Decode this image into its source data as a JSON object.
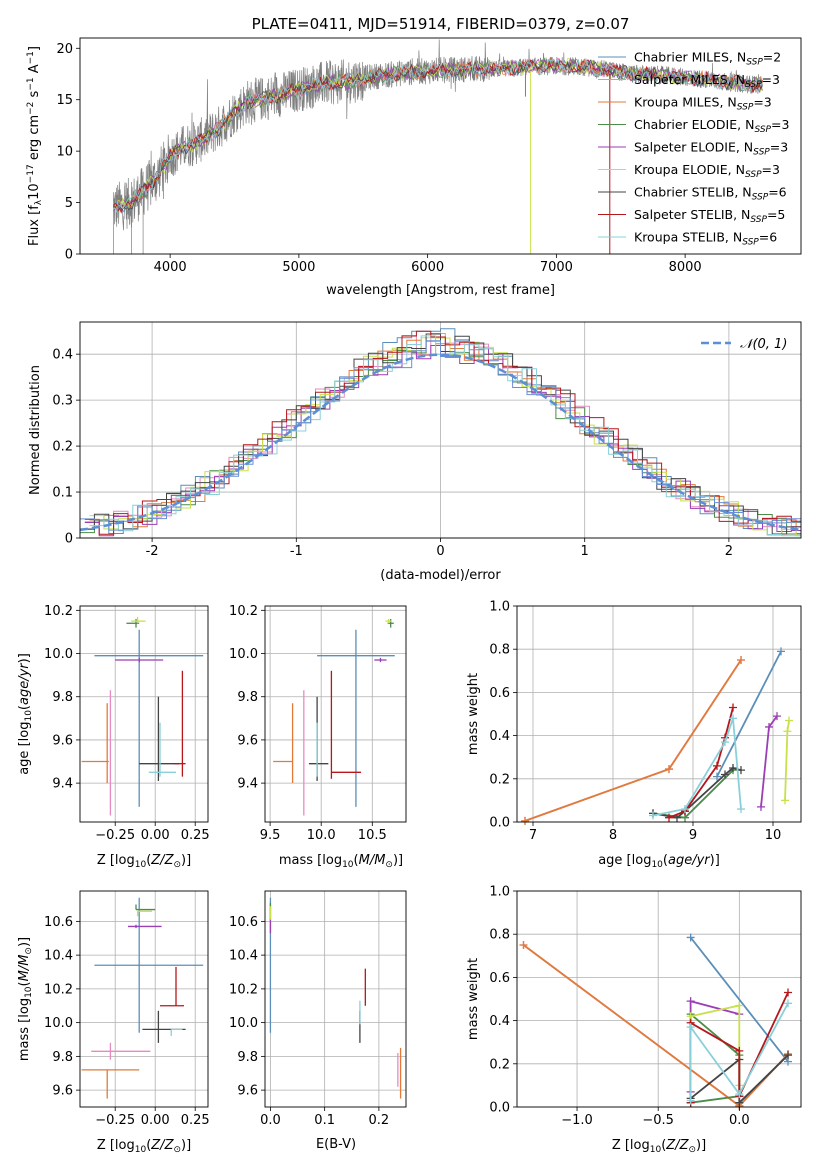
{
  "chart_data": [
    {
      "id": "spectrum",
      "type": "line",
      "title": "PLATE=0411, MJD=51914, FIBERID=0379, z=0.07",
      "xlabel": "wavelength [Angstrom, rest frame]",
      "ylabel": "Flux [fλ10⁻¹⁷ erg cm⁻² s⁻¹ A⁻¹]",
      "xlim": [
        3300,
        8900
      ],
      "ylim": [
        0,
        21
      ],
      "xticks": [
        4000,
        5000,
        6000,
        7000,
        8000
      ],
      "yticks": [
        0,
        5,
        10,
        15,
        20
      ],
      "legend_position": "top-right",
      "series": [
        {
          "name": "Chabrier MILES, N_SSP=2",
          "color": "#5b8fb9"
        },
        {
          "name": "Salpeter MILES, N_SSP=3",
          "color": "#e78ac3"
        },
        {
          "name": "Kroupa MILES, N_SSP=3",
          "color": "#e07b39"
        },
        {
          "name": "Chabrier ELODIE, N_SSP=3",
          "color": "#4a8c4a"
        },
        {
          "name": "Salpeter ELODIE, N_SSP=3",
          "color": "#9b3fb5"
        },
        {
          "name": "Kroupa ELODIE, N_SSP=3",
          "color": "#c8e04a"
        },
        {
          "name": "Chabrier STELIB, N_SSP=6",
          "color": "#444444"
        },
        {
          "name": "Salpeter STELIB, N_SSP=5",
          "color": "#b5171b"
        },
        {
          "name": "Kroupa STELIB, N_SSP=6",
          "color": "#8ad0d8"
        }
      ],
      "continuum": {
        "x": [
          3560,
          3700,
          3800,
          3900,
          4000,
          4100,
          4200,
          4300,
          4400,
          4500,
          4600,
          4800,
          5000,
          5200,
          5400,
          5600,
          5800,
          6000,
          6200,
          6400,
          6600,
          6800,
          7000,
          7200,
          7400,
          7600,
          7800,
          8000,
          8200,
          8400,
          8600
        ],
        "y": [
          4.5,
          5.0,
          6.2,
          7.5,
          9.5,
          10.4,
          10.8,
          11.5,
          12.5,
          13.8,
          14.8,
          15.3,
          16.0,
          16.6,
          16.8,
          17.3,
          17.6,
          17.8,
          17.9,
          18.0,
          18.0,
          18.2,
          18.3,
          18.2,
          17.9,
          17.5,
          17.4,
          17.2,
          16.9,
          16.6,
          16.4
        ]
      }
    },
    {
      "id": "residuals",
      "type": "step",
      "xlabel": "(data-model)/error",
      "ylabel": "Normed distribution",
      "xlim": [
        -2.5,
        2.5
      ],
      "ylim": [
        0,
        0.47
      ],
      "xticks": [
        -2,
        -1,
        0,
        1,
        2
      ],
      "yticks": [
        0.0,
        0.1,
        0.2,
        0.3,
        0.4
      ],
      "legend": [
        "𝒩(0, 1)"
      ],
      "grid": true
    },
    {
      "id": "age-vs-Z",
      "type": "errorbar",
      "xlabel": "Z [log₁₀(Z/Z⊙)]",
      "ylabel": "age  [log₁₀(age/yr)]",
      "xlim": [
        -0.47,
        0.33
      ],
      "ylim": [
        9.22,
        10.22
      ],
      "xticks": [
        -0.25,
        0.0,
        0.25
      ],
      "xticklabels": [
        "−0.25",
        "0.00",
        "0.25"
      ],
      "yticks": [
        9.4,
        9.6,
        9.8,
        10.0,
        10.2
      ],
      "yticklabels": [
        "9.4",
        "9.6",
        "9.8",
        "10.0",
        "10.2"
      ],
      "points": [
        {
          "x": -0.1,
          "xe": [
            0.28,
            0.4
          ],
          "y": 9.99,
          "ye": [
            0.7,
            0.12
          ],
          "color": "#5b8fb9"
        },
        {
          "x": -0.1,
          "xe": [
            0.15,
            0.15
          ],
          "y": 9.97,
          "ye": [
            0.01,
            0.01
          ],
          "color": "#9b3fb5"
        },
        {
          "x": -0.12,
          "xe": [
            0.06,
            0.02
          ],
          "y": 10.14,
          "ye": [
            0.02,
            0.02
          ],
          "color": "#4a8c4a"
        },
        {
          "x": -0.11,
          "xe": [
            0.04,
            0.05
          ],
          "y": 10.15,
          "ye": [
            0.01,
            0.02
          ],
          "color": "#c8e04a"
        },
        {
          "x": -0.3,
          "xe": [
            0.16,
            0.01
          ],
          "y": 9.5,
          "ye": [
            0.1,
            0.27
          ],
          "color": "#e07b39"
        },
        {
          "x": -0.28,
          "xe": [
            0.0,
            0.0
          ],
          "y": 9.5,
          "ye": [
            0.25,
            0.33
          ],
          "color": "#e78ac3"
        },
        {
          "x": 0.02,
          "xe": [
            0.12,
            0.13
          ],
          "y": 9.49,
          "ye": [
            0.08,
            0.31
          ],
          "color": "#444444"
        },
        {
          "x": 0.17,
          "xe": [
            0.05,
            0.02
          ],
          "y": 9.49,
          "ye": [
            0.06,
            0.43
          ],
          "color": "#b5171b"
        },
        {
          "x": 0.03,
          "xe": [
            0.07,
            0.1
          ],
          "y": 9.45,
          "ye": [
            0.02,
            0.23
          ],
          "color": "#8ad0d8"
        }
      ]
    },
    {
      "id": "age-vs-mass",
      "type": "errorbar",
      "xlabel": "mass [log₁₀(M/M⊙)]",
      "xlim": [
        9.45,
        10.83
      ],
      "ylim": [
        9.22,
        10.22
      ],
      "xticks": [
        9.5,
        10.0,
        10.5
      ],
      "xticklabels": [
        "9.5",
        "10.0",
        "10.5"
      ],
      "yticks": [
        9.4,
        9.6,
        9.8,
        10.0,
        10.2
      ],
      "yticklabels": [
        "9.4",
        "9.6",
        "9.8",
        "10.0",
        "10.2"
      ],
      "points": [
        {
          "x": 10.34,
          "xe": [
            0.38,
            0.38
          ],
          "y": 9.99,
          "ye": [
            0.7,
            0.12
          ],
          "color": "#5b8fb9"
        },
        {
          "x": 10.58,
          "xe": [
            0.06,
            0.06
          ],
          "y": 9.97,
          "ye": [
            0.01,
            0.01
          ],
          "color": "#9b3fb5"
        },
        {
          "x": 10.68,
          "xe": [
            0.03,
            0.03
          ],
          "y": 10.14,
          "ye": [
            0.02,
            0.02
          ],
          "color": "#4a8c4a"
        },
        {
          "x": 10.66,
          "xe": [
            0.03,
            0.03
          ],
          "y": 10.15,
          "ye": [
            0.01,
            0.01
          ],
          "color": "#c8e04a"
        },
        {
          "x": 9.72,
          "xe": [
            0.19,
            0.0
          ],
          "y": 9.5,
          "ye": [
            0.1,
            0.27
          ],
          "color": "#e07b39"
        },
        {
          "x": 9.83,
          "xe": [
            0.0,
            0.0
          ],
          "y": 9.5,
          "ye": [
            0.25,
            0.33
          ],
          "color": "#e78ac3"
        },
        {
          "x": 9.96,
          "xe": [
            0.08,
            0.11
          ],
          "y": 9.49,
          "ye": [
            0.08,
            0.31
          ],
          "color": "#444444"
        },
        {
          "x": 10.1,
          "xe": [
            0.0,
            0.29
          ],
          "y": 9.45,
          "ye": [
            0.03,
            0.47
          ],
          "color": "#b5171b"
        },
        {
          "x": 9.96,
          "xe": [
            0.0,
            0.0
          ],
          "y": 9.45,
          "ye": [
            0.02,
            0.23
          ],
          "color": "#8ad0d8"
        }
      ]
    },
    {
      "id": "massweight-vs-age",
      "type": "line",
      "xlabel": "age  [log₁₀(age/yr)]",
      "ylabel": "mass weight",
      "xlim": [
        6.8,
        10.35
      ],
      "ylim": [
        0,
        1.0
      ],
      "xticks": [
        7,
        8,
        9,
        10
      ],
      "xticklabels": [
        "7",
        "8",
        "9",
        "10"
      ],
      "yticks": [
        0.0,
        0.2,
        0.4,
        0.6,
        0.8,
        1.0
      ],
      "yticklabels": [
        "0.0",
        "0.2",
        "0.4",
        "0.6",
        "0.8",
        "1.0"
      ],
      "series": [
        {
          "color": "#5b8fb9",
          "x": [
            9.3,
            10.1
          ],
          "y": [
            0.21,
            0.79
          ]
        },
        {
          "color": "#e78ac3",
          "x": [
            6.9,
            8.7,
            9.6
          ],
          "y": [
            0.005,
            0.245,
            0.75
          ]
        },
        {
          "color": "#e07b39",
          "x": [
            6.9,
            8.7,
            9.6
          ],
          "y": [
            0.005,
            0.245,
            0.75
          ]
        },
        {
          "color": "#4a8c4a",
          "x": [
            8.5,
            8.9,
            9.5
          ],
          "y": [
            0.04,
            0.02,
            0.24
          ]
        },
        {
          "color": "#9b3fb5",
          "x": [
            9.85,
            9.95,
            10.05
          ],
          "y": [
            0.07,
            0.44,
            0.49
          ]
        },
        {
          "color": "#c8e04a",
          "x": [
            10.15,
            10.18,
            10.2
          ],
          "y": [
            0.1,
            0.42,
            0.47
          ]
        },
        {
          "color": "#444444",
          "x": [
            8.5,
            8.8,
            8.9,
            9.4,
            9.5,
            9.6
          ],
          "y": [
            0.04,
            0.02,
            0.05,
            0.22,
            0.25,
            0.24
          ]
        },
        {
          "color": "#b5171b",
          "x": [
            8.7,
            8.9,
            9.3,
            9.4,
            9.5
          ],
          "y": [
            0.02,
            0.05,
            0.26,
            0.39,
            0.53
          ]
        },
        {
          "color": "#8ad0d8",
          "x": [
            8.5,
            8.9,
            9.4,
            9.5,
            9.6
          ],
          "y": [
            0.03,
            0.06,
            0.37,
            0.48,
            0.06
          ]
        }
      ]
    },
    {
      "id": "mass-vs-Z",
      "type": "errorbar",
      "xlabel": "Z [log₁₀(Z/Z⊙)]",
      "ylabel": "mass [log₁₀(M/M⊙)]",
      "xlim": [
        -0.47,
        0.33
      ],
      "ylim": [
        9.5,
        10.78
      ],
      "xticks": [
        -0.25,
        0.0,
        0.25
      ],
      "xticklabels": [
        "−0.25",
        "0.00",
        "0.25"
      ],
      "yticks": [
        9.6,
        9.8,
        10.0,
        10.2,
        10.4,
        10.6
      ],
      "yticklabels": [
        "9.6",
        "9.8",
        "10.0",
        "10.2",
        "10.4",
        "10.6"
      ],
      "points": [
        {
          "x": -0.1,
          "xe": [
            0.28,
            0.4
          ],
          "y": 10.34,
          "ye": [
            0.4,
            0.4
          ],
          "color": "#5b8fb9"
        },
        {
          "x": -0.12,
          "xe": [
            0.05,
            0.16
          ],
          "y": 10.57,
          "ye": [
            0.01,
            0.01
          ],
          "color": "#9b3fb5"
        },
        {
          "x": -0.12,
          "xe": [
            0.0,
            0.12
          ],
          "y": 10.67,
          "ye": [
            0.0,
            0.03
          ],
          "color": "#4a8c4a"
        },
        {
          "x": -0.11,
          "xe": [
            0.0,
            0.09
          ],
          "y": 10.66,
          "ye": [
            0.03,
            0.0
          ],
          "color": "#c8e04a"
        },
        {
          "x": -0.3,
          "xe": [
            0.16,
            0.2
          ],
          "y": 9.72,
          "ye": [
            0.17,
            0.0
          ],
          "color": "#e07b39"
        },
        {
          "x": -0.28,
          "xe": [
            0.12,
            0.25
          ],
          "y": 9.83,
          "ye": [
            0.05,
            0.05
          ],
          "color": "#e78ac3"
        },
        {
          "x": 0.02,
          "xe": [
            0.1,
            0.17
          ],
          "y": 9.96,
          "ye": [
            0.08,
            0.11
          ],
          "color": "#444444"
        },
        {
          "x": 0.13,
          "xe": [
            0.1,
            0.05
          ],
          "y": 10.1,
          "ye": [
            0.0,
            0.23
          ],
          "color": "#b5171b"
        },
        {
          "x": 0.1,
          "xe": [
            0.0,
            0.07
          ],
          "y": 9.96,
          "ye": [
            0.04,
            0.0
          ],
          "color": "#8ad0d8"
        }
      ]
    },
    {
      "id": "mass-vs-ebv",
      "type": "errorbar",
      "xlabel": "E(B-V)",
      "xlim": [
        -0.01,
        0.25
      ],
      "ylim": [
        9.5,
        10.78
      ],
      "xticks": [
        0.0,
        0.1,
        0.2
      ],
      "xticklabels": [
        "0.0",
        "0.1",
        "0.2"
      ],
      "yticks": [
        9.6,
        9.8,
        10.0,
        10.2,
        10.4,
        10.6
      ],
      "yticklabels": [
        "9.6",
        "9.8",
        "10.0",
        "10.2",
        "10.4",
        "10.6"
      ],
      "points": [
        {
          "x": 0.0,
          "xe": [
            0,
            0
          ],
          "y": 10.34,
          "ye": [
            0.4,
            0.4
          ],
          "color": "#5b8fb9"
        },
        {
          "x": 0.0,
          "xe": [
            0,
            0
          ],
          "y": 10.58,
          "ye": [
            0.05,
            0.05
          ],
          "color": "#9b3fb5"
        },
        {
          "x": 0.0,
          "xe": [
            0,
            0
          ],
          "y": 10.67,
          "ye": [
            0.04,
            0.04
          ],
          "color": "#4a8c4a"
        },
        {
          "x": 0.0,
          "xe": [
            0,
            0
          ],
          "y": 10.65,
          "ye": [
            0.04,
            0.04
          ],
          "color": "#c8e04a"
        },
        {
          "x": 0.24,
          "xe": [
            0,
            0
          ],
          "y": 9.72,
          "ye": [
            0.17,
            0.13
          ],
          "color": "#e07b39"
        },
        {
          "x": 0.235,
          "xe": [
            0,
            0
          ],
          "y": 9.72,
          "ye": [
            0.1,
            0.1
          ],
          "color": "#e78ac3"
        },
        {
          "x": 0.165,
          "xe": [
            0,
            0
          ],
          "y": 9.96,
          "ye": [
            0.08,
            0.11
          ],
          "color": "#444444"
        },
        {
          "x": 0.175,
          "xe": [
            0,
            0
          ],
          "y": 10.21,
          "ye": [
            0.11,
            0.11
          ],
          "color": "#b5171b"
        },
        {
          "x": 0.165,
          "xe": [
            0,
            0
          ],
          "y": 10.04,
          "ye": [
            0.05,
            0.09
          ],
          "color": "#8ad0d8"
        }
      ]
    },
    {
      "id": "massweight-vs-Z",
      "type": "line",
      "xlabel": "Z [log₁₀(Z/Z⊙)]",
      "ylabel": "mass weight",
      "xlim": [
        -1.37,
        0.38
      ],
      "ylim": [
        0,
        1.0
      ],
      "xticks": [
        -1.0,
        -0.5,
        0.0
      ],
      "xticklabels": [
        "−1.0",
        "−0.5",
        "0.0"
      ],
      "yticks": [
        0.0,
        0.2,
        0.4,
        0.6,
        0.8,
        1.0
      ],
      "yticklabels": [
        "0.0",
        "0.2",
        "0.4",
        "0.6",
        "0.8",
        "1.0"
      ],
      "series": [
        {
          "color": "#5b8fb9",
          "x": [
            -0.3,
            0.3
          ],
          "y": [
            0.785,
            0.21
          ]
        },
        {
          "color": "#e78ac3",
          "x": [
            -1.33,
            0.0,
            0.3
          ],
          "y": [
            0.75,
            0.005,
            0.245
          ]
        },
        {
          "color": "#e07b39",
          "x": [
            -1.33,
            0.0,
            0.3
          ],
          "y": [
            0.75,
            0.005,
            0.245
          ]
        },
        {
          "color": "#4a8c4a",
          "x": [
            -0.3,
            0.0,
            0.0,
            -0.3
          ],
          "y": [
            0.02,
            0.05,
            0.24,
            0.43
          ]
        },
        {
          "color": "#9b3fb5",
          "x": [
            -0.3,
            -0.3,
            0.0
          ],
          "y": [
            0.07,
            0.49,
            0.43
          ]
        },
        {
          "color": "#c8e04a",
          "x": [
            -0.3,
            0.0,
            0.0
          ],
          "y": [
            0.42,
            0.47,
            0.1
          ]
        },
        {
          "color": "#444444",
          "x": [
            -0.3,
            0.0,
            0.0,
            0.0,
            0.3
          ],
          "y": [
            0.04,
            0.22,
            0.05,
            0.02,
            0.24
          ]
        },
        {
          "color": "#b5171b",
          "x": [
            -0.3,
            -0.3,
            0.0,
            0.0,
            0.3
          ],
          "y": [
            0.02,
            0.39,
            0.26,
            0.05,
            0.53
          ]
        },
        {
          "color": "#8ad0d8",
          "x": [
            -0.3,
            -0.3,
            0.0,
            0.3
          ],
          "y": [
            0.03,
            0.37,
            0.06,
            0.48
          ]
        }
      ]
    }
  ],
  "text": {
    "legend_normal": "𝒩(0, 1)"
  }
}
